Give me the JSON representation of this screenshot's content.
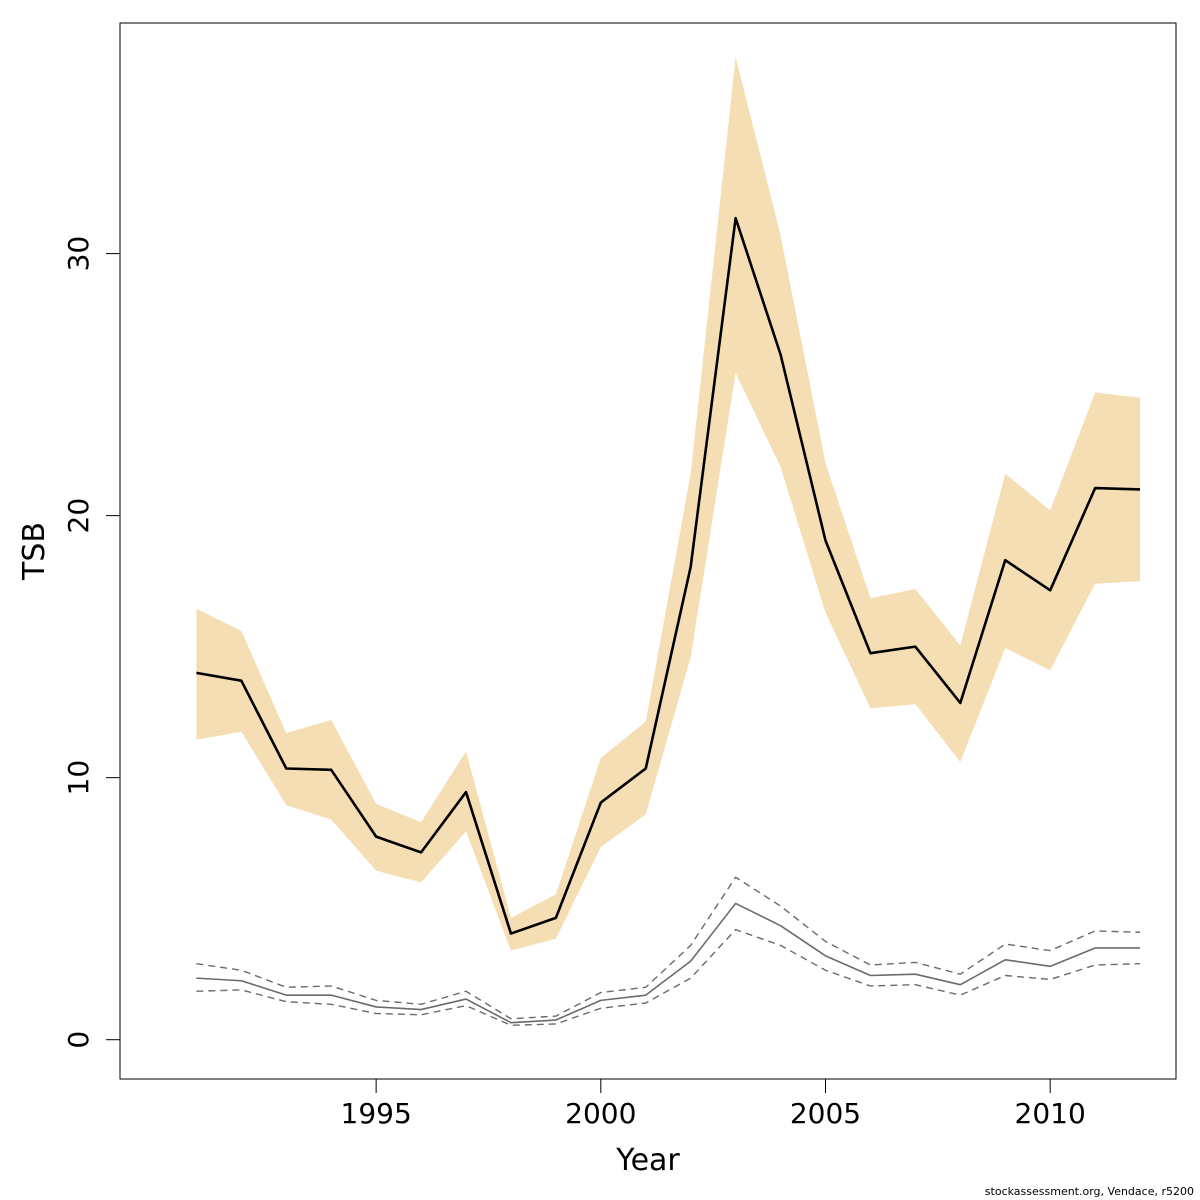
{
  "chart_data": {
    "type": "area",
    "xlabel": "Year",
    "ylabel": "TSB",
    "xlim": [
      1989.3,
      2012.8
    ],
    "ylim": [
      -1.5,
      38.8
    ],
    "x_ticks": [
      1995,
      2000,
      2005,
      2010
    ],
    "y_ticks": [
      0,
      10,
      20,
      30
    ],
    "grid": false,
    "colors": {
      "band": "#f5deb3",
      "main_line": "#000000",
      "secondary_line": "#6b6b6b"
    },
    "x": [
      1991,
      1992,
      1993,
      1994,
      1995,
      1996,
      1997,
      1998,
      1999,
      2000,
      2001,
      2002,
      2003,
      2004,
      2005,
      2006,
      2007,
      2008,
      2009,
      2010,
      2011,
      2012
    ],
    "series": [
      {
        "role": "estimate",
        "style": "solid-black",
        "values": [
          14.0,
          13.7,
          10.35,
          10.3,
          7.75,
          7.15,
          9.45,
          4.05,
          4.65,
          9.05,
          10.35,
          18.05,
          31.35,
          26.15,
          19.05,
          14.75,
          15.0,
          12.85,
          18.3,
          17.15,
          21.05,
          21.0
        ]
      },
      {
        "role": "upper-ci",
        "style": "band",
        "values": [
          16.45,
          15.6,
          11.7,
          12.2,
          9.0,
          8.3,
          11.0,
          4.65,
          5.55,
          10.75,
          12.15,
          21.6,
          37.5,
          30.7,
          22.0,
          16.85,
          17.2,
          15.05,
          21.6,
          20.2,
          24.7,
          24.5
        ]
      },
      {
        "role": "lower-ci",
        "style": "band",
        "values": [
          11.45,
          11.75,
          8.95,
          8.4,
          6.45,
          6.0,
          7.95,
          3.4,
          3.85,
          7.35,
          8.6,
          14.6,
          25.45,
          21.85,
          16.3,
          12.65,
          12.8,
          10.6,
          14.95,
          14.1,
          17.4,
          17.5
        ]
      },
      {
        "role": "secondary",
        "style": "solid-grey",
        "values": [
          2.35,
          2.25,
          1.7,
          1.7,
          1.25,
          1.15,
          1.55,
          0.65,
          0.75,
          1.5,
          1.7,
          3.0,
          5.2,
          4.35,
          3.2,
          2.45,
          2.5,
          2.1,
          3.05,
          2.8,
          3.5,
          3.5
        ]
      },
      {
        "role": "secondary-upper",
        "style": "dashed-grey",
        "values": [
          2.9,
          2.65,
          2.0,
          2.05,
          1.5,
          1.35,
          1.85,
          0.8,
          0.9,
          1.8,
          2.0,
          3.6,
          6.2,
          5.1,
          3.75,
          2.85,
          2.95,
          2.5,
          3.65,
          3.4,
          4.15,
          4.1
        ]
      },
      {
        "role": "secondary-lower",
        "style": "dashed-grey",
        "values": [
          1.85,
          1.9,
          1.45,
          1.35,
          1.0,
          0.95,
          1.3,
          0.55,
          0.6,
          1.2,
          1.4,
          2.35,
          4.2,
          3.6,
          2.65,
          2.05,
          2.1,
          1.7,
          2.45,
          2.3,
          2.85,
          2.9
        ]
      }
    ]
  },
  "footer": "stockassessment.org, Vendace, r5200"
}
